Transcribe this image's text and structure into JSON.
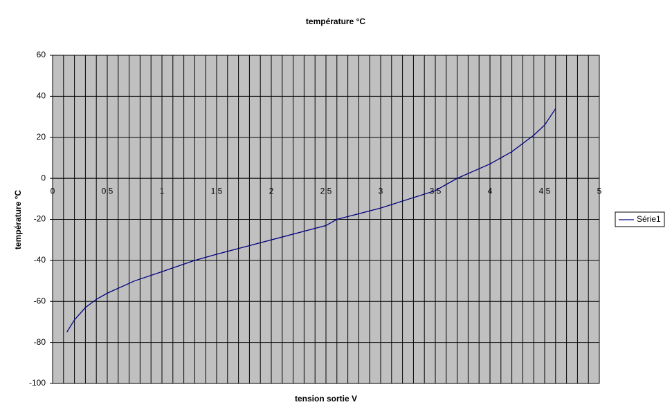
{
  "chart_data": {
    "type": "line",
    "title": "température °C",
    "x_label": "tension sortie V",
    "y_label": "température °C",
    "xlim": [
      0,
      5
    ],
    "ylim": [
      -100,
      60
    ],
    "xticks": [
      0,
      {
        "value": 0.5,
        "label": "0,5"
      },
      1,
      {
        "value": 1.5,
        "label": "1,5"
      },
      2,
      {
        "value": 2.5,
        "label": "2,5"
      },
      3,
      {
        "value": 3.5,
        "label": "3,5"
      },
      4,
      {
        "value": 4.5,
        "label": "4,5"
      },
      5
    ],
    "yticks": [
      60,
      40,
      20,
      0,
      -20,
      -40,
      -60,
      -80,
      -100
    ],
    "grid": true,
    "legend": "right",
    "x": [
      0.13,
      0.2,
      0.3,
      0.4,
      0.5,
      0.75,
      1,
      1.3,
      1.5,
      2,
      2.5,
      2.6,
      3,
      3.5,
      3.7,
      4,
      4.2,
      4.4,
      4.5,
      4.6
    ],
    "series": [
      {
        "name": "Série1",
        "color": "#000080",
        "values": [
          -75,
          -69,
          -63,
          -59,
          -56,
          -50,
          -45.5,
          -40,
          -37,
          -30,
          -23,
          -20,
          -14.5,
          -6,
          0,
          7,
          13,
          21,
          26,
          34
        ]
      }
    ]
  }
}
